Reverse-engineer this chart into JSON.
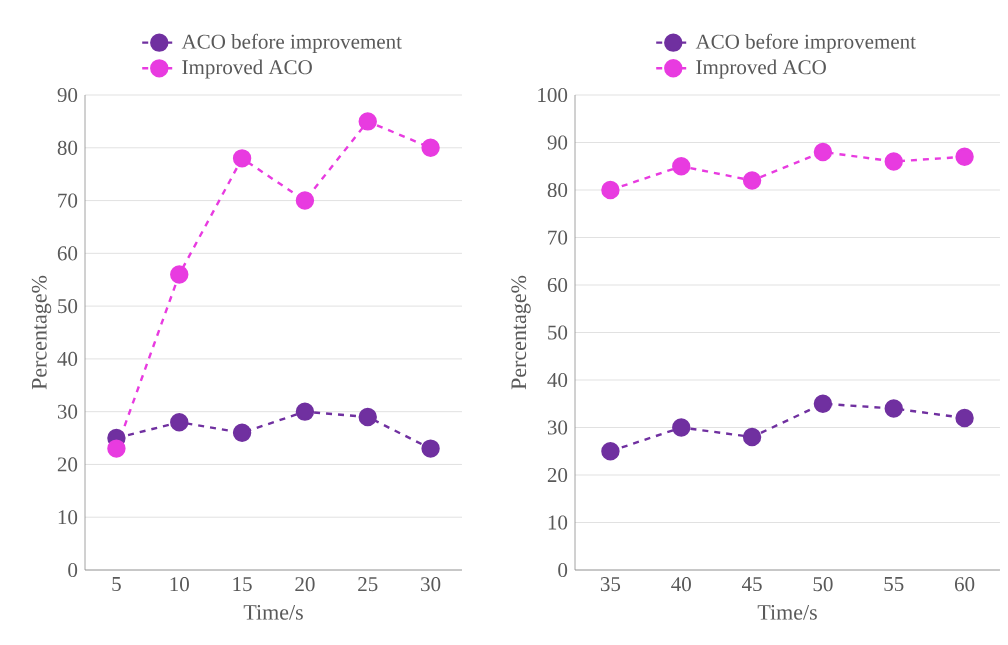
{
  "chart_data": [
    {
      "type": "line",
      "xlabel": "Time/s",
      "ylabel": "Percentage%",
      "categories": [
        "5",
        "10",
        "15",
        "20",
        "25",
        "30"
      ],
      "ylim": [
        0,
        90
      ],
      "yticks": [
        0,
        10,
        20,
        30,
        40,
        50,
        60,
        70,
        80,
        90
      ],
      "grid": "y",
      "legend": "top",
      "marker": "circle",
      "line_style": "dashed",
      "series": [
        {
          "name": "ACO before improvement",
          "color": "#7030a0",
          "values": [
            25,
            28,
            26,
            30,
            29,
            23
          ]
        },
        {
          "name": "Improved ACO",
          "color": "#e83be0",
          "values": [
            23,
            56,
            78,
            70,
            85,
            80
          ]
        }
      ]
    },
    {
      "type": "line",
      "xlabel": "Time/s",
      "ylabel": "Percentage%",
      "categories": [
        "35",
        "40",
        "45",
        "50",
        "55",
        "60"
      ],
      "ylim": [
        0,
        100
      ],
      "yticks": [
        0,
        10,
        20,
        30,
        40,
        50,
        60,
        70,
        80,
        90,
        100
      ],
      "grid": "y",
      "legend": "top",
      "marker": "circle",
      "line_style": "dashed",
      "series": [
        {
          "name": "ACO before improvement",
          "color": "#7030a0",
          "values": [
            25,
            30,
            28,
            35,
            34,
            32
          ]
        },
        {
          "name": "Improved ACO",
          "color": "#e83be0",
          "values": [
            80,
            85,
            82,
            88,
            86,
            87
          ]
        }
      ]
    }
  ]
}
